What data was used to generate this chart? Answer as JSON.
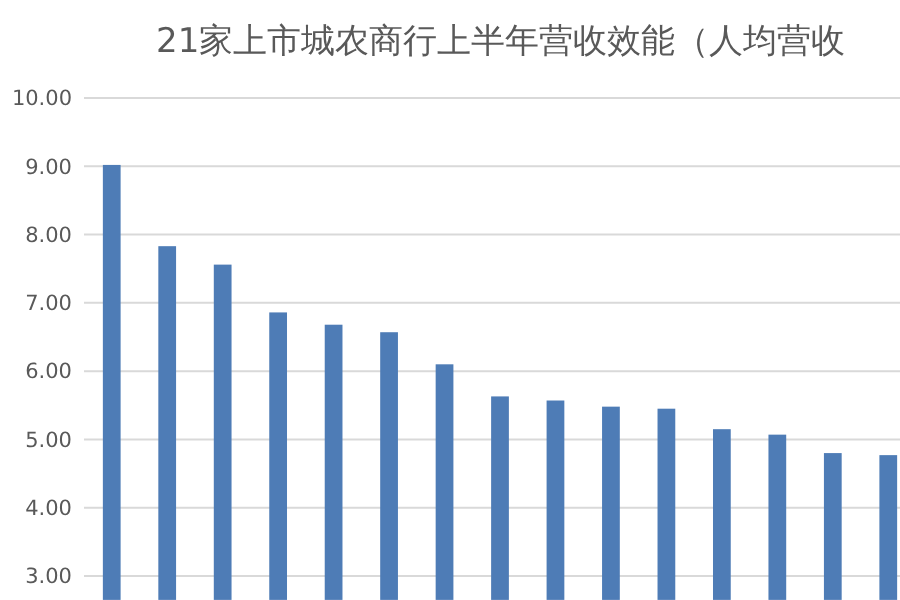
{
  "chart_data": {
    "type": "bar",
    "title": "21家上市城农商行上半年营收效能（人均营收",
    "categories": [
      null,
      null,
      null,
      null,
      null,
      null,
      null,
      null,
      null,
      null,
      null,
      null,
      null,
      null,
      null
    ],
    "values": [
      9.02,
      7.83,
      7.56,
      6.86,
      6.68,
      6.57,
      6.1,
      5.63,
      5.57,
      5.48,
      5.45,
      5.15,
      5.07,
      4.8,
      4.77
    ],
    "color": "#4e7cb6",
    "ylim": [
      2.65,
      10
    ],
    "yticks": [
      {
        "value": 3,
        "label": "3.00"
      },
      {
        "value": 4,
        "label": "4.00"
      },
      {
        "value": 5,
        "label": "5.00"
      },
      {
        "value": 6,
        "label": "6.00"
      },
      {
        "value": 7,
        "label": "7.00"
      },
      {
        "value": 8,
        "label": "8.00"
      },
      {
        "value": 9,
        "label": "9.00"
      },
      {
        "value": 10,
        "label": "10.00"
      }
    ],
    "grid": "y"
  }
}
